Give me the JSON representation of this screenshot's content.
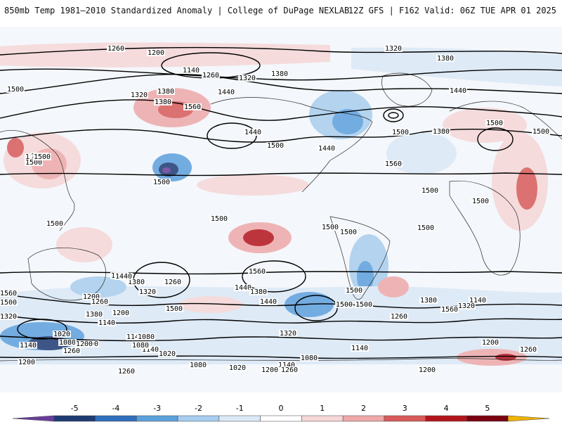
{
  "header": {
    "title_left": "850mb Temp 1981–2010 Standardized Anomaly | College of DuPage NEXLAB",
    "title_right": "12Z GFS | F162 Valid: 06Z TUE APR 01 2025"
  },
  "map": {
    "variable": "850mb Temp 1981–2010 Standardized Anomaly",
    "contour_labels": [
      "1260",
      "1200",
      "1140",
      "1320",
      "1380",
      "1260",
      "1320",
      "1380",
      "1440",
      "1380",
      "1320",
      "1380",
      "1560",
      "1440",
      "1440",
      "1500",
      "1500",
      "1440",
      "1380",
      "1500",
      "1500",
      "1500",
      "1560",
      "1500",
      "1500",
      "1500",
      "1500",
      "1500",
      "1500",
      "1500",
      "1500",
      "1500",
      "1560",
      "1440",
      "1380",
      "1260",
      "1320",
      "1560",
      "1500",
      "1440",
      "1380",
      "1500",
      "1440",
      "1380",
      "1140",
      "1320",
      "1200",
      "1260",
      "1560",
      "1500",
      "1320",
      "1380",
      "1200",
      "1260",
      "1020",
      "1080",
      "1140",
      "1080",
      "1200",
      "1140",
      "1200",
      "1260",
      "1140",
      "1020",
      "1080",
      "1140",
      "1320",
      "1080",
      "1020",
      "1200",
      "1260",
      "1140",
      "1080",
      "1200",
      "1200",
      "1260",
      "1140",
      "1200",
      "1260",
      "1440",
      "1500",
      "1500",
      "1500",
      "1500",
      "1500"
    ]
  },
  "colorbar": {
    "ticks": [
      "-5",
      "-4",
      "-3",
      "-2",
      "-1",
      "0",
      "1",
      "2",
      "3",
      "4",
      "5"
    ],
    "colors": [
      "#6a3d9a",
      "#1f3b73",
      "#2f6fbd",
      "#5da0dc",
      "#a8cdee",
      "#dbe8f6",
      "#ffffff",
      "#f6d7d7",
      "#eea9a9",
      "#d85a5a",
      "#b3141c",
      "#7a0010",
      "#f0b400"
    ]
  }
}
